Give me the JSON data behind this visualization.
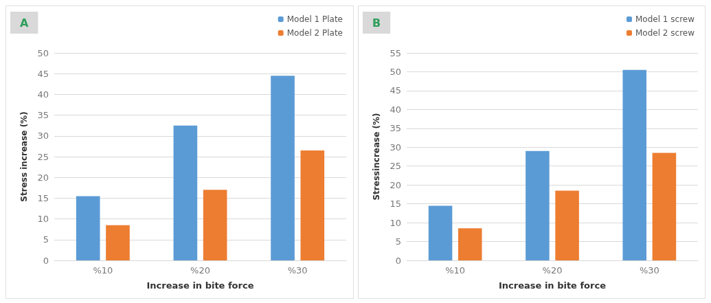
{
  "chart_data": [
    {
      "type": "bar",
      "title": "A",
      "xlabel": "Increase in bite force",
      "ylabel": "Stress increase (%)",
      "categories": [
        "%10",
        "%20",
        "%30"
      ],
      "series": [
        {
          "name": "Model 1 Plate",
          "color": "#5b9bd5",
          "values": [
            15.5,
            32.5,
            44.5
          ]
        },
        {
          "name": "Model 2 Plate",
          "color": "#ed7d31",
          "values": [
            8.5,
            17,
            26.5
          ]
        }
      ],
      "ylim": [
        0,
        50
      ],
      "yticks": [
        0,
        5,
        10,
        15,
        20,
        25,
        30,
        35,
        40,
        45,
        50
      ],
      "grid": "y",
      "legend": "top right"
    },
    {
      "type": "bar",
      "title": "B",
      "xlabel": "Increase in bite force",
      "ylabel": "Stressincrease (%)",
      "categories": [
        "%10",
        "%20",
        "%30"
      ],
      "series": [
        {
          "name": "Model 1 screw",
          "color": "#5b9bd5",
          "values": [
            14.5,
            29,
            50.5
          ]
        },
        {
          "name": "Model 2 screw",
          "color": "#ed7d31",
          "values": [
            8.5,
            18.5,
            28.5
          ]
        }
      ],
      "ylim": [
        0,
        55
      ],
      "yticks": [
        0,
        5,
        10,
        15,
        20,
        25,
        30,
        35,
        40,
        45,
        50,
        55
      ],
      "grid": "y",
      "legend": "top right"
    }
  ]
}
